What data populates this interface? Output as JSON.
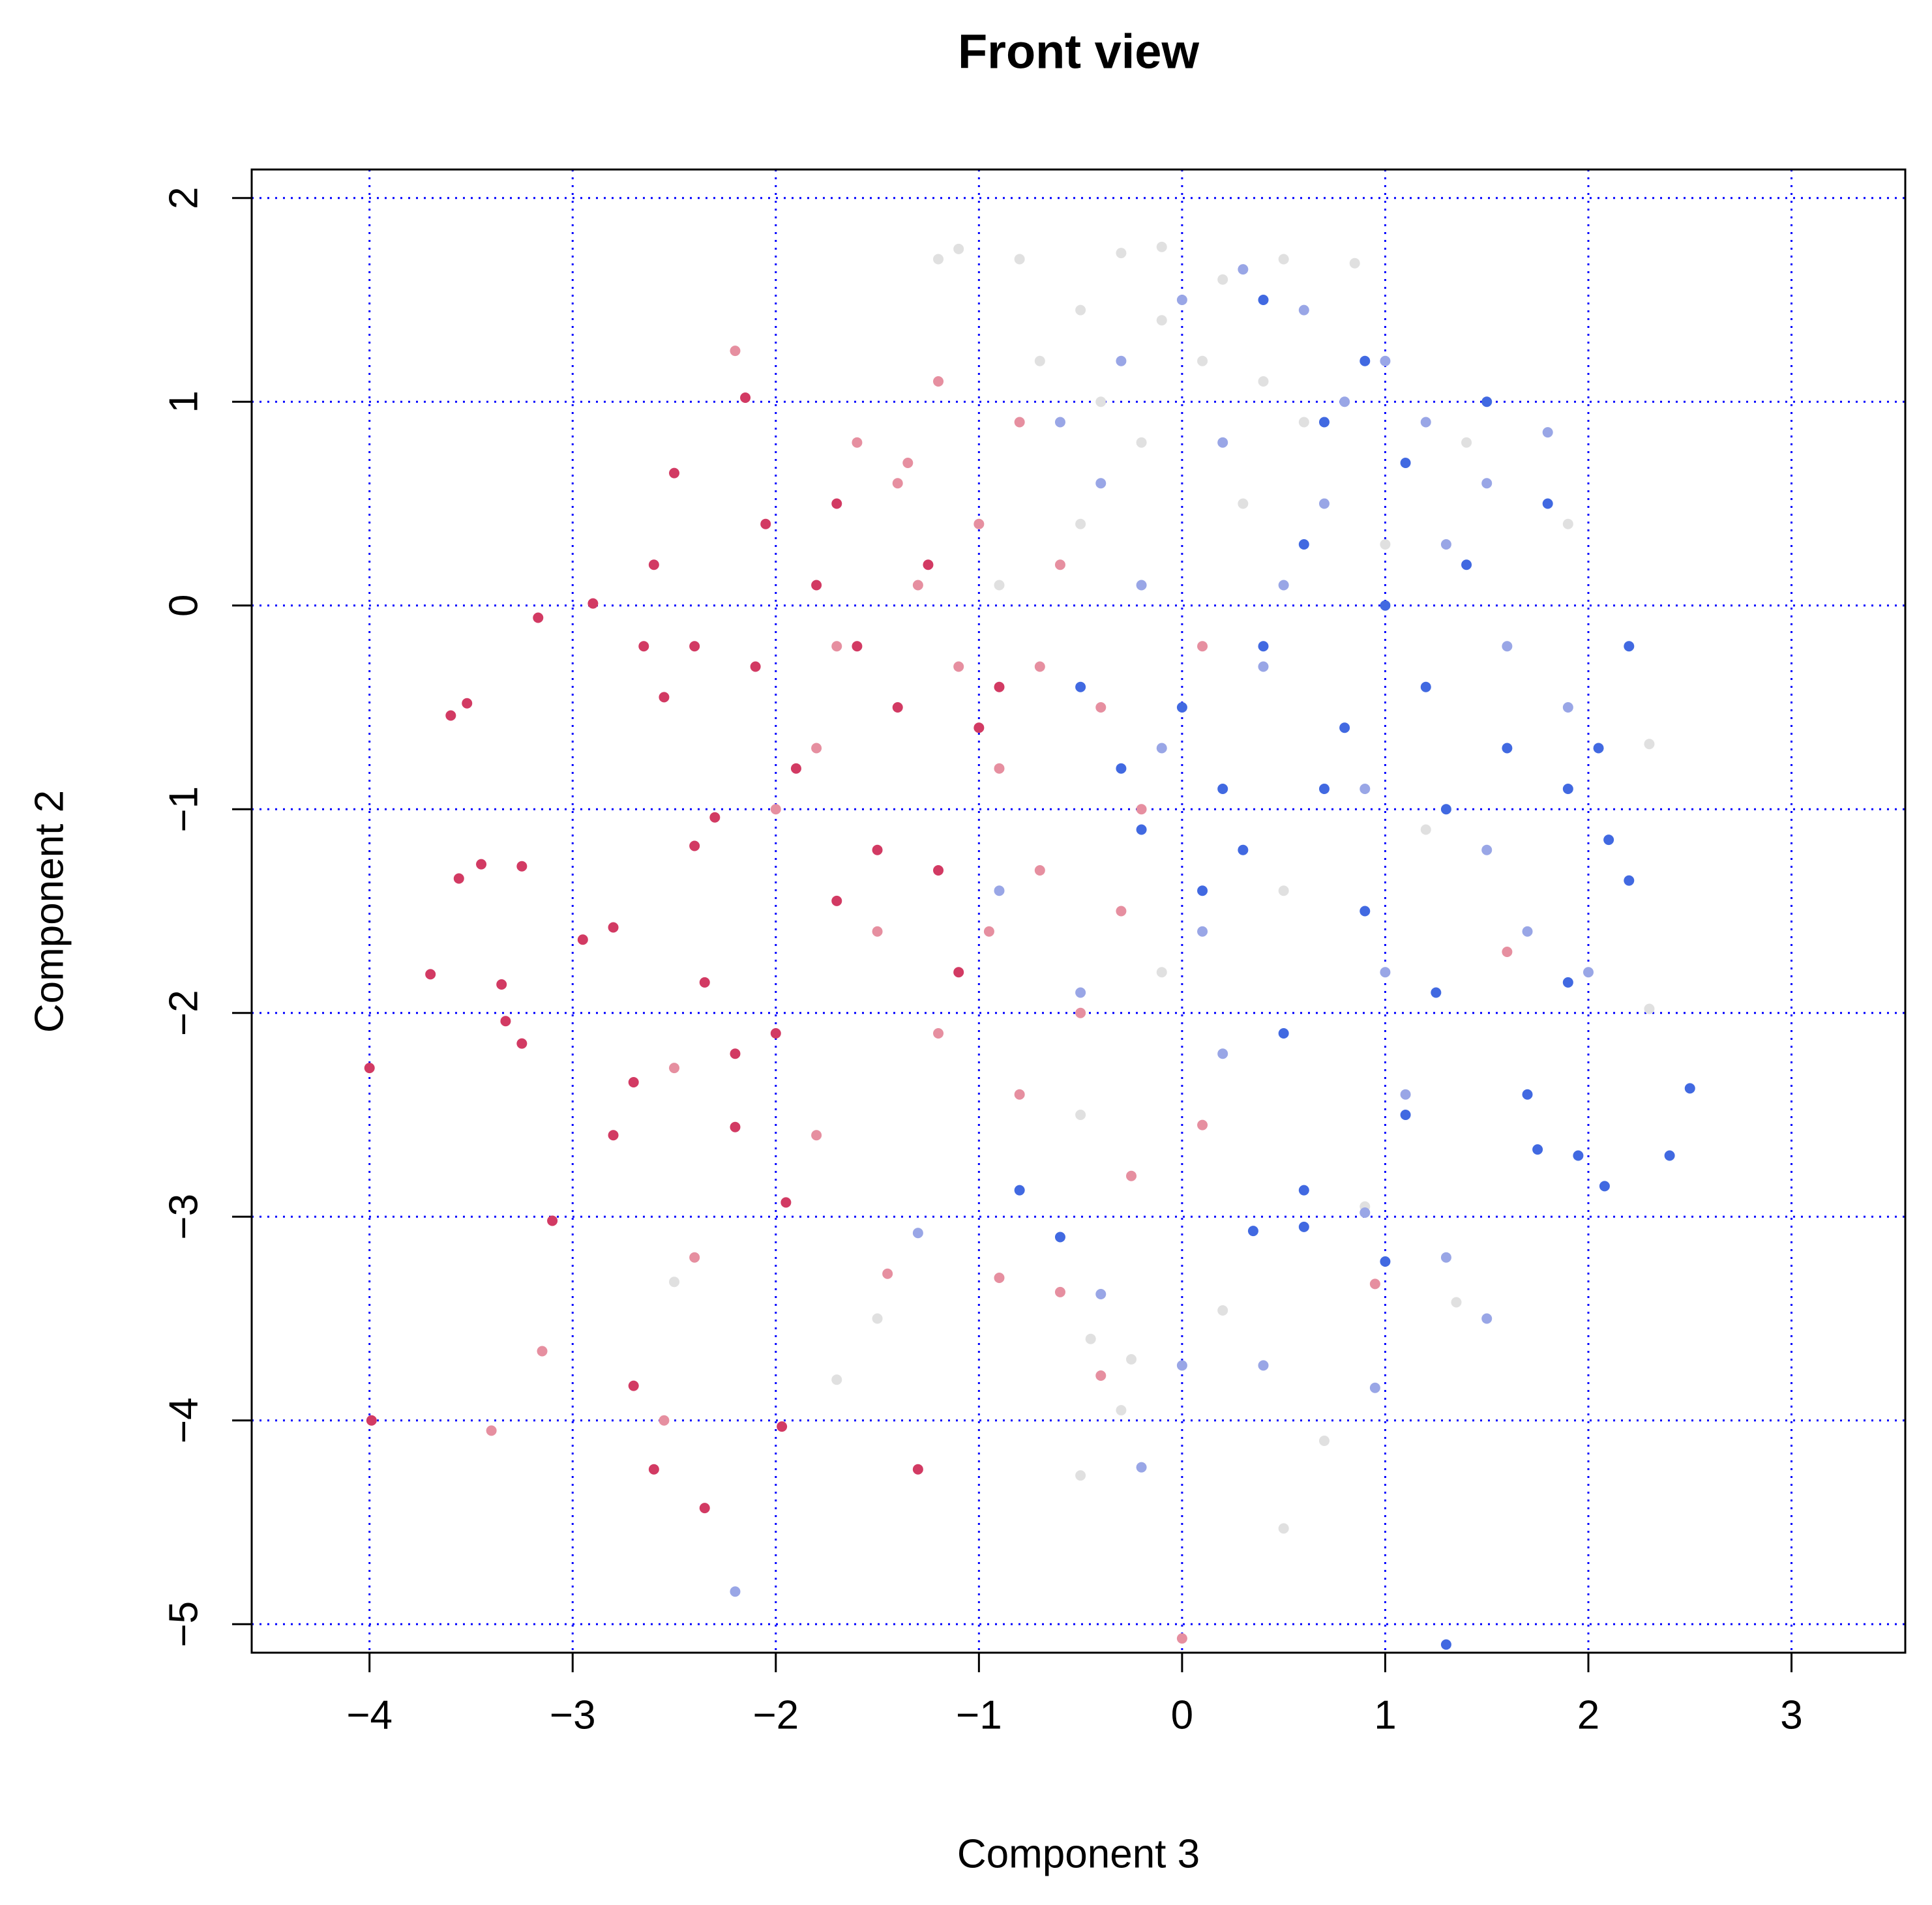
{
  "chart_data": {
    "type": "scatter",
    "title": "Front view",
    "x_label": "Component 3",
    "y_label": "Component 2",
    "xlim": [
      -4.58,
      3.56
    ],
    "ylim": [
      -5.14,
      2.14
    ],
    "xticks": [
      {
        "value": -4,
        "label": "−4"
      },
      {
        "value": -3,
        "label": "−3"
      },
      {
        "value": -2,
        "label": "−2"
      },
      {
        "value": -1,
        "label": "−1"
      },
      0,
      1,
      2,
      3
    ],
    "yticks": [
      {
        "value": -5,
        "label": "−5"
      },
      {
        "value": -4,
        "label": "−4"
      },
      {
        "value": -3,
        "label": "−3"
      },
      {
        "value": -2,
        "label": "−2"
      },
      {
        "value": -1,
        "label": "−1"
      },
      0,
      1,
      2
    ],
    "grid": true,
    "grid_color": "#0000ff",
    "series": [
      {
        "color": "#d23a63",
        "x": [
          -4,
          -3.99,
          -3.6,
          -3.52,
          -3.56,
          -3.45,
          -3.7,
          -3.35,
          -3.33,
          -3.25,
          -3.25,
          -3.1,
          -3.17,
          -2.9,
          -2.95,
          -2.8,
          -2.7,
          -2.8,
          -2.65,
          -2.6,
          -2.55,
          -2.4,
          -2.5,
          -2.3,
          -2.4,
          -2.2,
          -2.1,
          -2.05,
          -2.15,
          -2,
          -1.9,
          -1.8,
          -1.7,
          -1.6,
          -1.5,
          -1.4,
          -1.25,
          -1.1,
          -1,
          -2.7,
          -2.6,
          -2.35,
          -1.97,
          -1.3,
          -1.95,
          -2.35,
          -2.2,
          -1.7,
          -1.2,
          -0.9
        ],
        "y": [
          -2.27,
          -4,
          -0.54,
          -0.48,
          -1.34,
          -1.27,
          -1.81,
          -1.86,
          -2.04,
          -1.28,
          -2.15,
          -3.02,
          -0.06,
          0.01,
          -1.64,
          -1.58,
          -2.34,
          -2.6,
          -0.2,
          0.2,
          -0.45,
          -0.2,
          0.65,
          -1.04,
          -1.18,
          -2.56,
          -0.3,
          0.4,
          1.02,
          -2.1,
          -0.8,
          0.1,
          0.5,
          -0.2,
          -1.2,
          -0.5,
          0.2,
          -1.8,
          -0.6,
          -3.83,
          -4.24,
          -4.43,
          -4.03,
          -4.24,
          -2.93,
          -1.85,
          -2.2,
          -1.45,
          -1.3,
          -0.4
        ]
      },
      {
        "color": "#e68fa0",
        "x": [
          -1.6,
          -1.4,
          -1.2,
          -1,
          -0.8,
          -1.3,
          -1.1,
          -0.9,
          -0.7,
          -0.6,
          -0.4,
          -1.8,
          -1.5,
          -1.2,
          -0.8,
          -0.5,
          -0.3,
          -2.2,
          -1.8,
          -2.4,
          -2.5,
          -3.15,
          -3.4,
          -2.55,
          -0.9,
          -0.6,
          -0.4,
          0,
          0.95,
          -1.45,
          -0.2,
          0.1,
          -1.7,
          -0.95,
          -0.25,
          0.1,
          1.6,
          -2,
          -1.35,
          -0.7
        ],
        "y": [
          0.8,
          0.6,
          1.1,
          0.4,
          0.9,
          0.1,
          -0.3,
          -0.8,
          -1.3,
          0.2,
          -0.5,
          -0.7,
          -1.6,
          -2.1,
          -2.4,
          -2,
          -1.5,
          1.25,
          -2.6,
          -3.2,
          -2.27,
          -3.66,
          -4.05,
          -4,
          -3.3,
          -3.37,
          -3.78,
          -5.07,
          -3.33,
          -3.28,
          -1,
          -0.2,
          -0.2,
          -1.6,
          -2.8,
          -2.55,
          -1.7,
          -1,
          0.7,
          -0.3
        ]
      },
      {
        "color": "#e0e0e0",
        "x": [
          -1.2,
          -1.1,
          -0.8,
          -0.5,
          -0.3,
          -0.1,
          0.2,
          0.5,
          0.85,
          -0.7,
          -0.4,
          -0.2,
          0.1,
          0.3,
          -0.5,
          -0.9,
          0.6,
          1,
          1.4,
          1.9,
          2.3,
          1.2,
          0.5,
          -0.1,
          -0.5,
          -0.3,
          -0.5,
          0.5,
          0.7,
          0.2,
          -0.45,
          -1.7,
          -2.5,
          1.35,
          2.3,
          0.9,
          -1.5,
          -0.25,
          -0.1,
          0.4
        ],
        "y": [
          1.7,
          1.75,
          1.7,
          1.45,
          1.73,
          1.76,
          1.6,
          1.7,
          1.68,
          1.2,
          1,
          0.8,
          1.2,
          0.5,
          0.4,
          0.1,
          0.9,
          0.3,
          0.8,
          0.4,
          -0.68,
          -1.1,
          -1.4,
          -1.8,
          -2.5,
          -3.95,
          -4.27,
          -4.53,
          -4.1,
          -3.46,
          -3.6,
          -3.8,
          -3.32,
          -3.42,
          -1.98,
          -2.95,
          -3.5,
          -3.7,
          1.4,
          1.1
        ]
      },
      {
        "color": "#99a6e6",
        "x": [
          0,
          0.3,
          0.6,
          1,
          -0.3,
          -0.6,
          0.2,
          0.7,
          1.3,
          1.6,
          1.9,
          -0.2,
          0.4,
          0.9,
          1.5,
          0.1,
          -0.5,
          -0.9,
          1.8,
          1.1,
          1.3,
          1.5,
          0.95,
          0,
          0.4,
          -0.2,
          -2.2,
          -1.3,
          -0.4,
          0.9,
          1.2,
          0.5,
          -0.1,
          1,
          1.5,
          -0.4,
          0.8,
          1.7,
          0.2,
          2
        ],
        "y": [
          1.5,
          1.65,
          1.45,
          1.2,
          1.2,
          0.9,
          0.8,
          0.5,
          0.3,
          -0.2,
          -0.5,
          0.1,
          -0.3,
          -0.9,
          -1.2,
          -1.6,
          -1.9,
          -1.4,
          0.85,
          -2.4,
          -3.2,
          -3.5,
          -3.84,
          -3.73,
          -3.73,
          -4.23,
          -4.84,
          -3.08,
          -3.38,
          -2.98,
          0.9,
          0.1,
          -0.7,
          -1.8,
          0.6,
          0.6,
          1,
          -1.6,
          -2.2,
          -1.8
        ]
      },
      {
        "color": "#4169e1",
        "x": [
          0,
          0.2,
          0.4,
          0.6,
          0.8,
          1,
          1.2,
          0.3,
          0.1,
          -0.3,
          -0.5,
          0.7,
          1.1,
          1.4,
          1.6,
          1.9,
          2.05,
          2.2,
          1.8,
          1.5,
          0.9,
          0.4,
          2.1,
          2.2,
          1.9,
          1.95,
          2.08,
          2.4,
          2.5,
          1.75,
          1.7,
          1.3,
          1,
          0.6,
          0.35,
          0.6,
          -0.6,
          -0.8,
          0.9,
          1.25,
          0.5,
          1.1,
          0.7,
          -0.2,
          1.3
        ],
        "y": [
          -0.5,
          -0.9,
          -0.2,
          0.3,
          -0.6,
          0,
          -0.4,
          -1.2,
          -1.4,
          -0.8,
          -0.4,
          0.9,
          0.7,
          0.2,
          -0.7,
          -0.9,
          -0.7,
          -0.2,
          0.5,
          1,
          1.2,
          1.5,
          -1.15,
          -1.35,
          -1.85,
          -2.7,
          -2.85,
          -2.7,
          -2.37,
          -2.67,
          -2.4,
          -5.1,
          -3.22,
          -3.05,
          -3.07,
          -2.87,
          -3.1,
          -2.87,
          -1.5,
          -1.9,
          -2.1,
          -2.5,
          -0.9,
          -1.1,
          -1
        ]
      }
    ]
  }
}
